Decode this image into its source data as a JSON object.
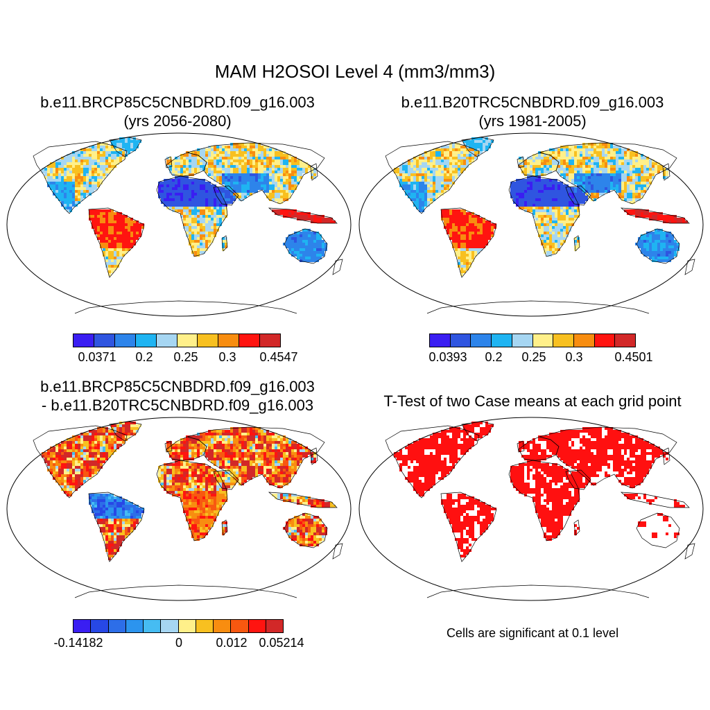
{
  "main_title": "MAM H2OSOI Level 4 (mm3/mm3)",
  "panels": [
    {
      "title_line1": "b.e11.BRCP85C5CNBDRD.f09_g16.003",
      "title_line2": "(yrs 2056-2080)"
    },
    {
      "title_line1": "b.e11.B20TRC5CNBDRD.f09_g16.003",
      "title_line2": "(yrs 1981-2005)"
    },
    {
      "title_line1": "b.e11.BRCP85C5CNBDRD.f09_g16.003",
      "title_line2": "- b.e11.B20TRC5CNBDRD.f09_g16.003"
    },
    {
      "title_line1": "T-Test of two Case means at each grid point",
      "note": "Cells are significant at 0.1 level"
    }
  ],
  "colorbars": [
    {
      "colors": [
        "#3a1ef2",
        "#2f55e0",
        "#2d84ea",
        "#1fb4f2",
        "#a6d6f2",
        "#fff08a",
        "#f8c020",
        "#f88d10",
        "#ff1410",
        "#d22828"
      ],
      "labels": [
        "0.0371",
        "0.2",
        "0.25",
        "0.3",
        "0.4547"
      ]
    },
    {
      "colors": [
        "#3a1ef2",
        "#2f55e0",
        "#2d84ea",
        "#1fb4f2",
        "#a6d6f2",
        "#fff08a",
        "#f8c020",
        "#f88d10",
        "#ff1410",
        "#d22828"
      ],
      "labels": [
        "0.0393",
        "0.2",
        "0.25",
        "0.3",
        "0.4501"
      ]
    },
    {
      "colors": [
        "#3a1ef2",
        "#2748e6",
        "#2d6ee8",
        "#2c94ee",
        "#46bcf2",
        "#a6d6f2",
        "#fff08a",
        "#f8c020",
        "#f88d10",
        "#f85810",
        "#ff1410",
        "#d22828"
      ],
      "labels": [
        "-0.14182",
        "0",
        "0.012",
        "0.05214"
      ]
    }
  ]
}
